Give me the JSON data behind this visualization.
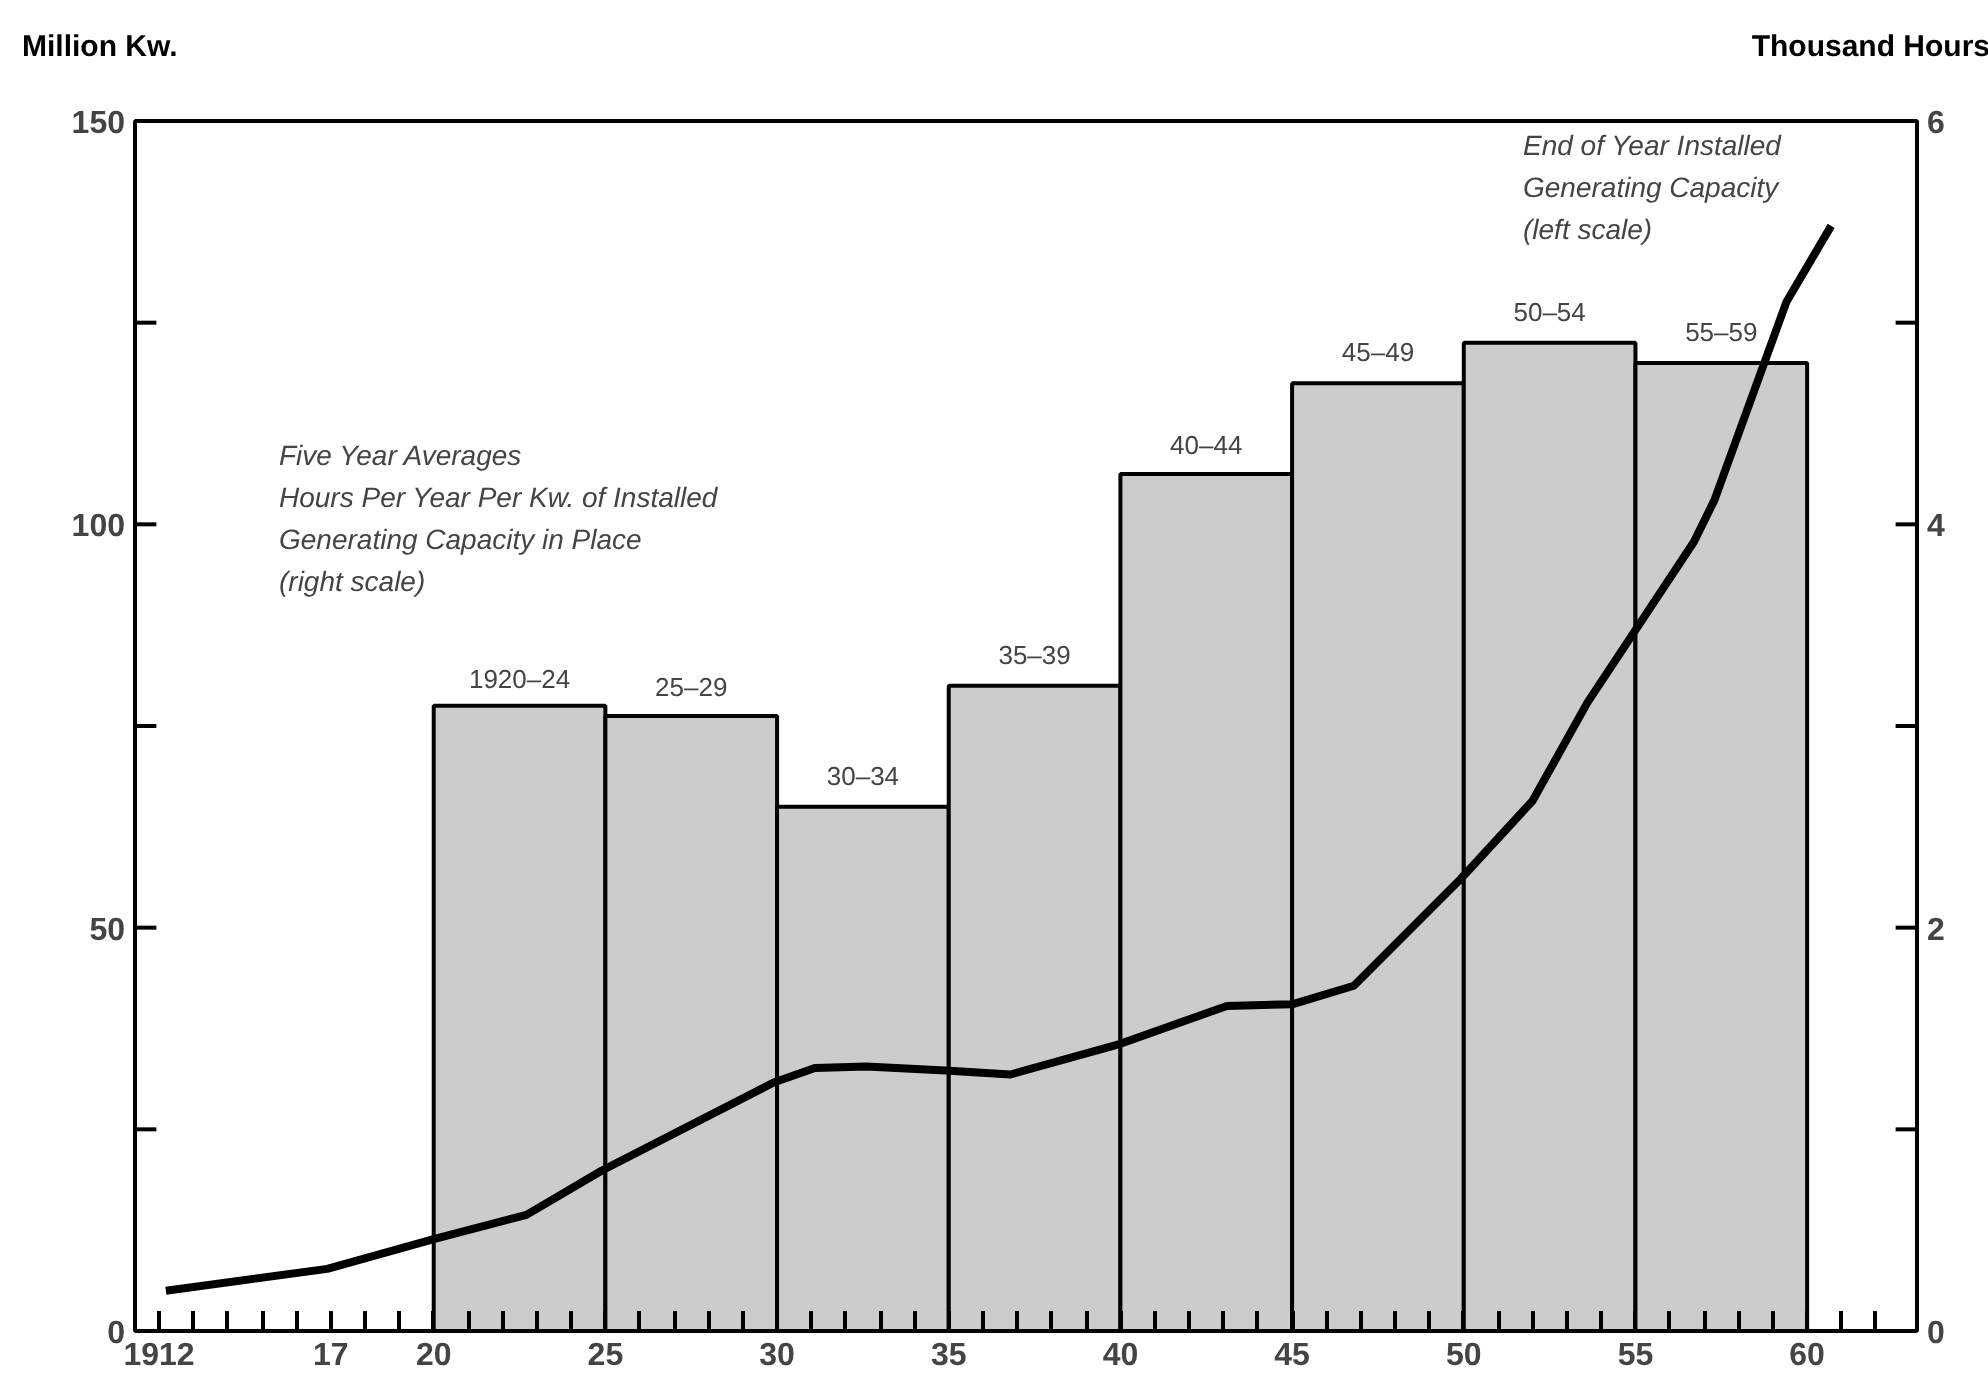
{
  "chart_data": {
    "type": "line",
    "ylabel": "Million Kw.",
    "y2label": "Thousand Hours",
    "xlim": [
      1911.3,
      1963.2
    ],
    "xticks": [
      {
        "value": 1912,
        "label": "1912"
      },
      {
        "value": 1913,
        "label": null
      },
      {
        "value": 1914,
        "label": null
      },
      {
        "value": 1915,
        "label": null
      },
      {
        "value": 1916,
        "label": null
      },
      {
        "value": 1917,
        "label": "17"
      },
      {
        "value": 1918,
        "label": null
      },
      {
        "value": 1919,
        "label": null
      },
      {
        "value": 1920,
        "label": "20"
      },
      {
        "value": 1921,
        "label": null
      },
      {
        "value": 1922,
        "label": null
      },
      {
        "value": 1923,
        "label": null
      },
      {
        "value": 1924,
        "label": null
      },
      {
        "value": 1925,
        "label": "25"
      },
      {
        "value": 1926,
        "label": null
      },
      {
        "value": 1927,
        "label": null
      },
      {
        "value": 1928,
        "label": null
      },
      {
        "value": 1929,
        "label": null
      },
      {
        "value": 1930,
        "label": "30"
      },
      {
        "value": 1931,
        "label": null
      },
      {
        "value": 1932,
        "label": null
      },
      {
        "value": 1933,
        "label": null
      },
      {
        "value": 1934,
        "label": null
      },
      {
        "value": 1935,
        "label": "35"
      },
      {
        "value": 1936,
        "label": null
      },
      {
        "value": 1937,
        "label": null
      },
      {
        "value": 1938,
        "label": null
      },
      {
        "value": 1939,
        "label": null
      },
      {
        "value": 1940,
        "label": "40"
      },
      {
        "value": 1941,
        "label": null
      },
      {
        "value": 1942,
        "label": null
      },
      {
        "value": 1943,
        "label": null
      },
      {
        "value": 1944,
        "label": null
      },
      {
        "value": 1945,
        "label": "45"
      },
      {
        "value": 1946,
        "label": null
      },
      {
        "value": 1947,
        "label": null
      },
      {
        "value": 1948,
        "label": null
      },
      {
        "value": 1949,
        "label": null
      },
      {
        "value": 1950,
        "label": "50"
      },
      {
        "value": 1951,
        "label": null
      },
      {
        "value": 1952,
        "label": null
      },
      {
        "value": 1953,
        "label": null
      },
      {
        "value": 1954,
        "label": null
      },
      {
        "value": 1955,
        "label": "55"
      },
      {
        "value": 1956,
        "label": null
      },
      {
        "value": 1957,
        "label": null
      },
      {
        "value": 1958,
        "label": null
      },
      {
        "value": 1959,
        "label": null
      },
      {
        "value": 1960,
        "label": "60"
      },
      {
        "value": 1961,
        "label": null
      },
      {
        "value": 1962,
        "label": null
      }
    ],
    "ylim": [
      0,
      150
    ],
    "yticks": [
      0,
      {
        "value": 25,
        "label": null
      },
      50,
      {
        "value": 75,
        "label": null
      },
      100,
      {
        "value": 125,
        "label": null
      },
      150
    ],
    "y2lim": [
      0,
      6
    ],
    "y2ticks": [
      0,
      {
        "value": 1,
        "label": null
      },
      2,
      {
        "value": 3,
        "label": null
      },
      4,
      {
        "value": 5,
        "label": null
      },
      6
    ],
    "series": [
      {
        "type": "histogram",
        "axis": "y2",
        "color": "#cccccc",
        "bins": [
          1920,
          1925,
          1930,
          1935,
          1940,
          1945,
          1950,
          1955,
          1960
        ],
        "values": [
          3.1,
          3.05,
          2.6,
          3.2,
          4.25,
          4.7,
          4.9,
          4.8
        ]
      },
      {
        "axis": "y",
        "color": "#000000",
        "x": [
          1912.2,
          1916.9,
          1920.0,
          1922.7,
          1924.9,
          1929.9,
          1931.1,
          1932.6,
          1934.9,
          1936.8,
          1940.0,
          1943.1,
          1945.0,
          1946.8,
          1949.9,
          1952.0,
          1953.6,
          1956.7,
          1957.3,
          1959.4,
          1960.7
        ],
        "values": [
          5.0,
          7.7,
          11.4,
          14.4,
          19.9,
          30.8,
          32.6,
          32.8,
          32.3,
          31.8,
          35.6,
          40.3,
          40.5,
          42.8,
          56,
          65.7,
          77.9,
          97.8,
          103,
          127.6,
          137
        ]
      }
    ],
    "annotations": [
      "Five Year Averages\nHours Per Year Per Kw. of Installed\nGenerating Capacity in Place\n(right scale)",
      "End of Year Installed\nGenerating Capacity\n(left scale)",
      {
        "text": "1920–24",
        "x": 1922.5,
        "y": 77
      },
      {
        "text": "25–29",
        "x": 1927.5,
        "y": 76
      },
      {
        "text": "30–34",
        "x": 1932.5,
        "y": 65
      },
      {
        "text": "35–39",
        "x": 1937.5,
        "y": 80
      },
      {
        "text": "40–44",
        "x": 1942.5,
        "y": 106
      },
      {
        "text": "45–49",
        "x": 1947.5,
        "y": 117.5
      },
      {
        "text": "50–54",
        "x": 1952.5,
        "y": 122.5
      },
      {
        "text": "55–59",
        "x": 1957.5,
        "y": 120
      }
    ],
    "grid": false,
    "line_style": "solid",
    "marker": "none"
  }
}
